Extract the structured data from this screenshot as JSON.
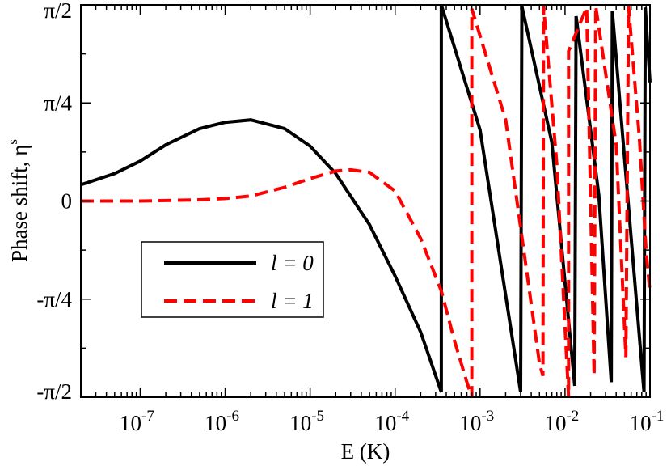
{
  "chart_data": {
    "type": "line",
    "title": "",
    "xlabel": "E (K)",
    "ylabel_main": "Phase shift, η",
    "ylabel_sup": "s",
    "x_scale": "log",
    "xlim": [
      2e-08,
      0.1
    ],
    "ylim_rad": [
      -1.5708,
      1.5708
    ],
    "x_ticks": [
      {
        "value": 1e-07,
        "base": "10",
        "exp": "-7"
      },
      {
        "value": 1e-06,
        "base": "10",
        "exp": "-6"
      },
      {
        "value": 1e-05,
        "base": "10",
        "exp": "-5"
      },
      {
        "value": 0.0001,
        "base": "10",
        "exp": "-4"
      },
      {
        "value": 0.001,
        "base": "10",
        "exp": "-3"
      },
      {
        "value": 0.01,
        "base": "10",
        "exp": "-2"
      },
      {
        "value": 0.1,
        "base": "10",
        "exp": "-1"
      }
    ],
    "y_ticks": [
      {
        "value": 1.5708,
        "label": "π/2"
      },
      {
        "value": 0.7854,
        "label": "π/4"
      },
      {
        "value": 0,
        "label": "0"
      },
      {
        "value": -0.7854,
        "label": "-π/4"
      },
      {
        "value": -1.5708,
        "label": "-π/2"
      }
    ],
    "legend_position": "center-left",
    "grid": false,
    "series": [
      {
        "name": "l = 0",
        "color": "#000000",
        "dash": "solid",
        "points": [
          [
            2e-08,
            0.13
          ],
          [
            5e-08,
            0.22
          ],
          [
            1e-07,
            0.32
          ],
          [
            2e-07,
            0.45
          ],
          [
            5e-07,
            0.58
          ],
          [
            1e-06,
            0.63
          ],
          [
            2e-06,
            0.65
          ],
          [
            5e-06,
            0.58
          ],
          [
            1e-05,
            0.44
          ],
          [
            2e-05,
            0.22
          ],
          [
            5e-05,
            -0.19
          ],
          [
            0.0001,
            -0.6
          ],
          [
            0.0002,
            -1.05
          ],
          [
            0.00035,
            -1.53
          ],
          [
            0.00035,
            1.57
          ],
          [
            0.001,
            0.57
          ],
          [
            0.003,
            -1.53
          ],
          [
            0.0031,
            1.56
          ],
          [
            0.007,
            0.47
          ],
          [
            0.013,
            -1.48
          ],
          [
            0.0135,
            1.48
          ],
          [
            0.025,
            0.05
          ],
          [
            0.035,
            -1.45
          ],
          [
            0.036,
            1.52
          ],
          [
            0.05,
            0.35
          ],
          [
            0.085,
            -1.53
          ],
          [
            0.088,
            1.55
          ],
          [
            0.1,
            0.95
          ]
        ]
      },
      {
        "name": "l = 1",
        "color": "#ff0000",
        "dash": "dashed",
        "points": [
          [
            2e-08,
            0.0
          ],
          [
            1e-07,
            0.0
          ],
          [
            5e-07,
            0.01
          ],
          [
            1e-06,
            0.02
          ],
          [
            2e-06,
            0.04
          ],
          [
            5e-06,
            0.11
          ],
          [
            1e-05,
            0.18
          ],
          [
            2e-05,
            0.24
          ],
          [
            3e-05,
            0.25
          ],
          [
            5e-05,
            0.23
          ],
          [
            0.0001,
            0.08
          ],
          [
            0.0002,
            -0.3
          ],
          [
            0.00035,
            -0.72
          ],
          [
            0.0005,
            -1.12
          ],
          [
            0.0007,
            -1.45
          ],
          [
            0.0008,
            -1.57
          ],
          [
            0.0008,
            1.54
          ],
          [
            0.002,
            0.65
          ],
          [
            0.005,
            -1.3
          ],
          [
            0.0055,
            -1.4
          ],
          [
            0.0056,
            1.56
          ],
          [
            0.008,
            0.3
          ],
          [
            0.011,
            -1.57
          ],
          [
            0.011,
            1.2
          ],
          [
            0.018,
            1.55
          ],
          [
            0.022,
            -1.4
          ],
          [
            0.023,
            1.56
          ],
          [
            0.04,
            0.45
          ],
          [
            0.052,
            -1.25
          ],
          [
            0.056,
            1.56
          ],
          [
            0.075,
            0.5
          ],
          [
            0.09,
            -0.4
          ],
          [
            0.1,
            -0.73
          ]
        ]
      }
    ]
  },
  "legend": {
    "entries": [
      {
        "label": "l = 0",
        "color": "#000000",
        "dash": "solid"
      },
      {
        "label": "l = 1",
        "color": "#ff0000",
        "dash": "dashed"
      }
    ]
  }
}
